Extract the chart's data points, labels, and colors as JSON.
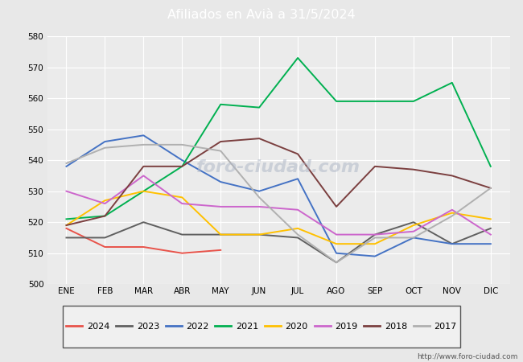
{
  "title": "Afiliados en Avià a 31/5/2024",
  "title_color": "#ffffff",
  "title_bg_color": "#5b9bd5",
  "ylim": [
    500,
    580
  ],
  "yticks": [
    500,
    510,
    520,
    530,
    540,
    550,
    560,
    570,
    580
  ],
  "months": [
    "ENE",
    "FEB",
    "MAR",
    "ABR",
    "MAY",
    "JUN",
    "JUL",
    "AGO",
    "SEP",
    "OCT",
    "NOV",
    "DIC"
  ],
  "watermark": "http://www.foro-ciudad.com",
  "series": {
    "2024": {
      "color": "#e8534a",
      "data": [
        518,
        512,
        512,
        510,
        511,
        null,
        null,
        null,
        null,
        null,
        null,
        null
      ]
    },
    "2023": {
      "color": "#606060",
      "data": [
        515,
        515,
        520,
        516,
        516,
        516,
        515,
        507,
        516,
        520,
        513,
        518
      ]
    },
    "2022": {
      "color": "#4472c4",
      "data": [
        538,
        546,
        548,
        540,
        533,
        530,
        534,
        510,
        509,
        515,
        513,
        513
      ]
    },
    "2021": {
      "color": "#00b050",
      "data": [
        521,
        522,
        530,
        538,
        558,
        557,
        573,
        559,
        559,
        559,
        565,
        538
      ]
    },
    "2020": {
      "color": "#ffc000",
      "data": [
        519,
        527,
        530,
        528,
        516,
        516,
        518,
        513,
        513,
        519,
        523,
        521
      ]
    },
    "2019": {
      "color": "#cc66cc",
      "data": [
        530,
        526,
        535,
        526,
        525,
        525,
        524,
        516,
        516,
        517,
        524,
        516
      ]
    },
    "2018": {
      "color": "#7b3f3f",
      "data": [
        519,
        522,
        538,
        538,
        546,
        547,
        542,
        525,
        538,
        537,
        535,
        531
      ]
    },
    "2017": {
      "color": "#b0b0b0",
      "data": [
        539,
        544,
        545,
        545,
        543,
        528,
        516,
        507,
        515,
        515,
        522,
        531
      ]
    }
  },
  "legend_order": [
    "2024",
    "2023",
    "2022",
    "2021",
    "2020",
    "2019",
    "2018",
    "2017"
  ],
  "bg_color": "#e8e8e8",
  "plot_bg_color": "#ebebeb",
  "grid_color": "#ffffff"
}
